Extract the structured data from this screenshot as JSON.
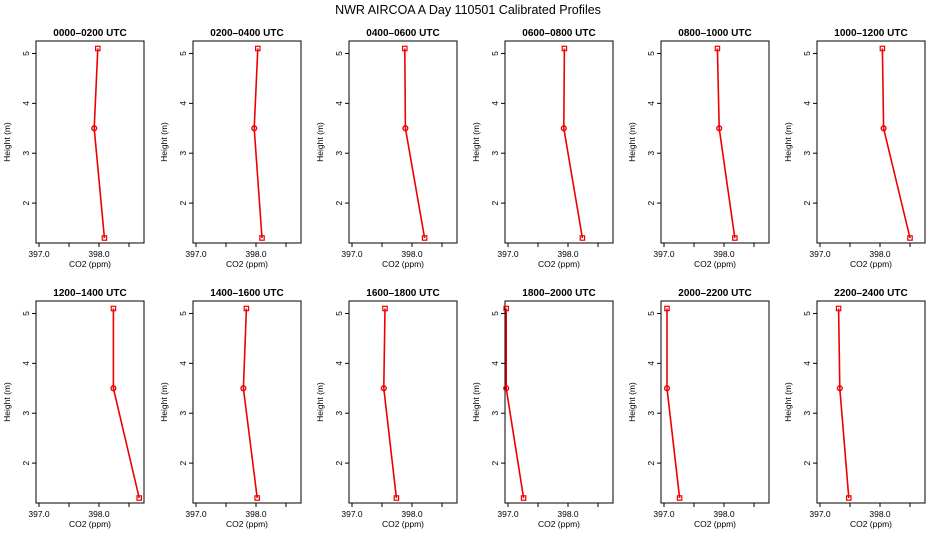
{
  "title": "NWR AIRCOA A  Day 110501  Calibrated Profiles",
  "chart_data": {
    "type": "line",
    "xlabel": "CO2 (ppm)",
    "ylabel": "Height (m)",
    "xlim": [
      396.95,
      398.75
    ],
    "ylim": [
      1.2,
      5.25
    ],
    "xticks": [
      397.0,
      397.5,
      398.0,
      398.5
    ],
    "xtick_labels": [
      "397.0",
      "",
      "398.0",
      ""
    ],
    "yticks": [
      2,
      3,
      4,
      5
    ],
    "ytick_labels": [
      "2",
      "3",
      "4",
      "5"
    ],
    "heights": [
      5.1,
      3.5,
      1.3
    ],
    "series_color": "#ee0000",
    "panels": [
      {
        "title": "0000–0200 UTC",
        "values": [
          397.98,
          397.92,
          398.09
        ]
      },
      {
        "title": "0200–0400 UTC",
        "values": [
          398.03,
          397.97,
          398.1
        ]
      },
      {
        "title": "0400–0600 UTC",
        "values": [
          397.88,
          397.89,
          398.21
        ]
      },
      {
        "title": "0600–0800 UTC",
        "values": [
          397.94,
          397.93,
          398.24
        ]
      },
      {
        "title": "0800–1000 UTC",
        "values": [
          397.89,
          397.92,
          398.18
        ]
      },
      {
        "title": "1000–1200 UTC",
        "values": [
          398.04,
          398.06,
          398.5
        ]
      },
      {
        "title": "1200–1400 UTC",
        "values": [
          398.24,
          398.24,
          398.67
        ]
      },
      {
        "title": "1400–1600 UTC",
        "values": [
          397.84,
          397.79,
          398.02
        ]
      },
      {
        "title": "1600–1800 UTC",
        "values": [
          397.55,
          397.53,
          397.74
        ]
      },
      {
        "title": "1800–2000 UTC",
        "values": [
          396.97,
          396.97,
          397.26
        ]
      },
      {
        "title": "2000–2200 UTC",
        "values": [
          397.05,
          397.05,
          397.26
        ]
      },
      {
        "title": "2200–2400 UTC",
        "values": [
          397.31,
          397.33,
          397.48
        ]
      }
    ]
  }
}
